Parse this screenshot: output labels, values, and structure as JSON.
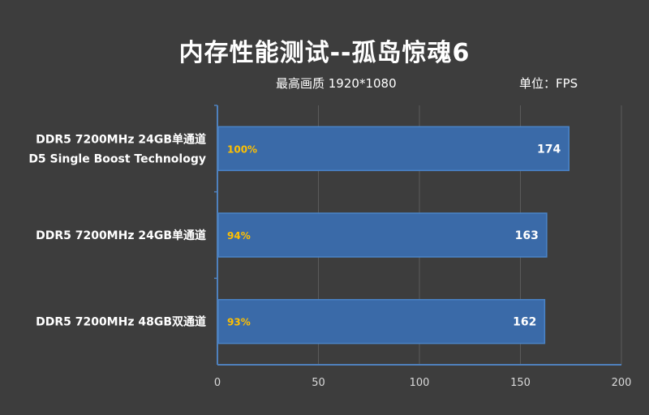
{
  "chart_data": {
    "type": "bar",
    "orientation": "horizontal",
    "title": "内存性能测试--孤岛惊魂6",
    "subtitle": "最高画质 1920*1080",
    "unit_label": "单位：FPS",
    "categories": [
      [
        "DDR5 7200MHz 24GB单通道",
        "D5 Single Boost Technology"
      ],
      [
        "DDR5 7200MHz 24GB单通道"
      ],
      [
        "DDR5 7200MHz 48GB双通道"
      ]
    ],
    "values": [
      174,
      163,
      162
    ],
    "percent_labels": [
      "100%",
      "94%",
      "93%"
    ],
    "xlim": [
      0,
      200
    ],
    "xticks": [
      0,
      50,
      100,
      150,
      200
    ],
    "grid": true,
    "legend": "none",
    "colors": {
      "bar": "#3a6aa8",
      "bar_edge": "#4a84c8",
      "axis": "#4f81bd",
      "grid": "#5a5a5a",
      "percent": "#ffc000",
      "background": "#3d3d3d"
    }
  }
}
